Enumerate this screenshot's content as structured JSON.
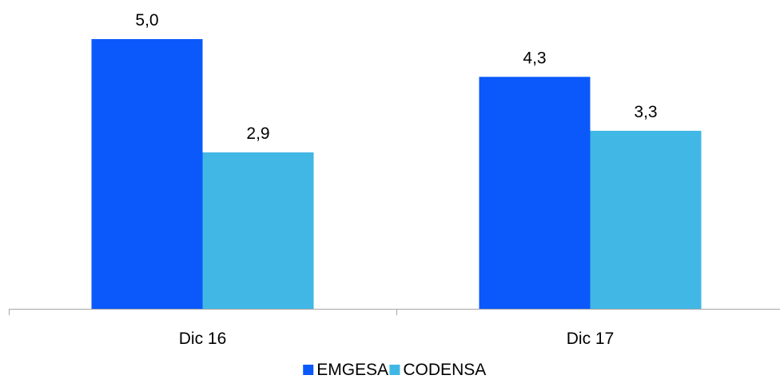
{
  "chart_data": {
    "type": "bar",
    "categories": [
      "Dic 16",
      "Dic 17"
    ],
    "series": [
      {
        "name": "EMGESA",
        "values": [
          5.0,
          4.3
        ],
        "labels": [
          "5,0",
          "4,3"
        ],
        "color": "#0B59FB"
      },
      {
        "name": "CODENSA",
        "values": [
          2.9,
          3.3
        ],
        "labels": [
          "2,9",
          "3,3"
        ],
        "color": "#41B7E5"
      }
    ],
    "title": "",
    "xlabel": "",
    "ylabel": "",
    "ylim": [
      0,
      5.0
    ],
    "grid": false,
    "y_axis_visible": false,
    "legend": "bottom-center",
    "axis_color": "#A6A6A6"
  }
}
